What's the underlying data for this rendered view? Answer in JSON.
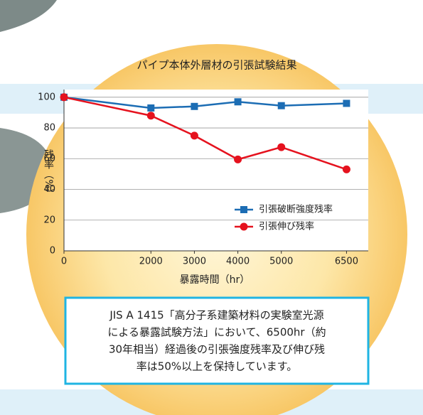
{
  "chart_data": {
    "type": "line",
    "title": "パイプ本体外層材の引張試験結果",
    "x_label": "暴露時間（hr）",
    "y_label": "残率（%）",
    "x": [
      0,
      2000,
      3000,
      4000,
      5000,
      6500
    ],
    "series": [
      {
        "name": "引張破断強度残率",
        "color": "#1c6db4",
        "marker": "square",
        "values": [
          100,
          93,
          94,
          97,
          94.5,
          96
        ]
      },
      {
        "name": "引張伸び残率",
        "color": "#e5121e",
        "marker": "circle",
        "values": [
          100,
          88,
          75,
          59.5,
          67.5,
          53
        ]
      }
    ],
    "xlim": [
      0,
      7000
    ],
    "xticks": [
      0,
      2000,
      3000,
      4000,
      5000,
      6500
    ],
    "ylim": [
      0,
      105
    ],
    "yticks": [
      0,
      20,
      40,
      60,
      80,
      100
    ],
    "grid": true,
    "legend": "lower right",
    "note": [
      "JIS A 1415「高分子系建築材料の実験室光源",
      "による暴露試験方法」において、6500hr（約",
      "30年相当）経過後の引張強度残率及び伸び残",
      "率は50%以上を保持しています。"
    ]
  }
}
